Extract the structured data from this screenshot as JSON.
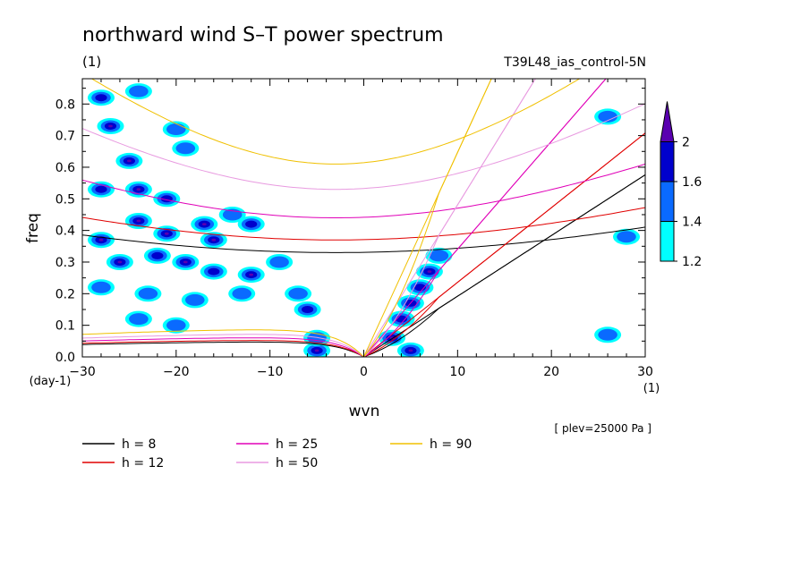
{
  "chart_data": {
    "type": "heatmap",
    "title": "northward wind S–T power spectrum",
    "subtitle_left": "(1)",
    "subtitle_right": "T39L48_ias_control-5N",
    "xlabel": "wvn",
    "ylabel": "freq",
    "x_unit": "(1)",
    "y_unit": "(day-1)",
    "xlim": [
      -30,
      30
    ],
    "ylim": [
      0,
      0.88
    ],
    "xticks": [
      -30,
      -20,
      -10,
      0,
      10,
      20,
      30
    ],
    "xtick_labels": [
      "−30",
      "−20",
      "−10",
      "0",
      "10",
      "20",
      "30"
    ],
    "yticks": [
      0.0,
      0.1,
      0.2,
      0.3,
      0.4,
      0.5,
      0.6,
      0.7,
      0.8
    ],
    "ytick_labels": [
      "0.0",
      "0.1",
      "0.2",
      "0.3",
      "0.4",
      "0.5",
      "0.6",
      "0.7",
      "0.8"
    ],
    "level_note": "[ plev=25000 Pa ]",
    "colorbar": {
      "levels": [
        1.2,
        1.4,
        1.6,
        2
      ],
      "labels": [
        "1.2",
        "1.4",
        "1.6",
        "2"
      ],
      "colors": [
        "#00ffff",
        "#0a6aff",
        "#0000cc",
        "#5a00b0"
      ]
    },
    "series": [
      {
        "name": "h = 8",
        "h": 8,
        "color": "#000000"
      },
      {
        "name": "h = 12",
        "h": 12,
        "color": "#e00000"
      },
      {
        "name": "h = 25",
        "h": 25,
        "color": "#e000b8"
      },
      {
        "name": "h = 50",
        "h": 50,
        "color": "#e89ae0"
      },
      {
        "name": "h = 90",
        "h": 90,
        "color": "#f0c000"
      }
    ],
    "curves": {
      "equatorial_rossby": {
        "asymptote": [
          0.056,
          0.062,
          0.072,
          0.085,
          0.102
        ]
      },
      "inertia_gravity": {
        "minimum": [
          0.33,
          0.37,
          0.44,
          0.53,
          0.61
        ],
        "slope": [
          0.0074,
          0.0089,
          0.0128,
          0.0182,
          0.0244
        ]
      },
      "kelvin": {
        "slope": [
          0.0192,
          0.0236,
          0.0341,
          0.0481,
          0.0647
        ]
      },
      "mrg": {
        "slope": [
          0.0192,
          0.0236,
          0.0341,
          0.0481,
          0.0647
        ]
      }
    },
    "blobs": [
      {
        "k": -28,
        "f": 0.82,
        "l": 2
      },
      {
        "k": -24,
        "f": 0.84,
        "l": 1
      },
      {
        "k": -27,
        "f": 0.73,
        "l": 3
      },
      {
        "k": -20,
        "f": 0.72,
        "l": 1
      },
      {
        "k": -25,
        "f": 0.62,
        "l": 3
      },
      {
        "k": -19,
        "f": 0.66,
        "l": 1
      },
      {
        "k": -28,
        "f": 0.53,
        "l": 2
      },
      {
        "k": -24,
        "f": 0.53,
        "l": 3
      },
      {
        "k": -21,
        "f": 0.5,
        "l": 2
      },
      {
        "k": -28,
        "f": 0.37,
        "l": 3
      },
      {
        "k": -24,
        "f": 0.43,
        "l": 3
      },
      {
        "k": -21,
        "f": 0.39,
        "l": 3
      },
      {
        "k": -17,
        "f": 0.42,
        "l": 3
      },
      {
        "k": -16,
        "f": 0.37,
        "l": 3
      },
      {
        "k": -14,
        "f": 0.45,
        "l": 1
      },
      {
        "k": -12,
        "f": 0.42,
        "l": 2
      },
      {
        "k": -26,
        "f": 0.3,
        "l": 3
      },
      {
        "k": -22,
        "f": 0.32,
        "l": 2
      },
      {
        "k": -19,
        "f": 0.3,
        "l": 3
      },
      {
        "k": -16,
        "f": 0.27,
        "l": 2
      },
      {
        "k": -12,
        "f": 0.26,
        "l": 3
      },
      {
        "k": -28,
        "f": 0.22,
        "l": 1
      },
      {
        "k": -23,
        "f": 0.2,
        "l": 1
      },
      {
        "k": -18,
        "f": 0.18,
        "l": 1
      },
      {
        "k": -13,
        "f": 0.2,
        "l": 1
      },
      {
        "k": -9,
        "f": 0.3,
        "l": 1
      },
      {
        "k": -7,
        "f": 0.2,
        "l": 1
      },
      {
        "k": -24,
        "f": 0.12,
        "l": 1
      },
      {
        "k": -20,
        "f": 0.1,
        "l": 1
      },
      {
        "k": -6,
        "f": 0.15,
        "l": 2
      },
      {
        "k": -5,
        "f": 0.02,
        "l": 3
      },
      {
        "k": -5,
        "f": 0.06,
        "l": 1
      },
      {
        "k": 3,
        "f": 0.06,
        "l": 3
      },
      {
        "k": 4,
        "f": 0.12,
        "l": 2
      },
      {
        "k": 5,
        "f": 0.17,
        "l": 2
      },
      {
        "k": 6,
        "f": 0.22,
        "l": 2
      },
      {
        "k": 7,
        "f": 0.27,
        "l": 3
      },
      {
        "k": 8,
        "f": 0.32,
        "l": 1
      },
      {
        "k": 5,
        "f": 0.02,
        "l": 3
      },
      {
        "k": 26,
        "f": 0.07,
        "l": 1
      },
      {
        "k": 26,
        "f": 0.76,
        "l": 1
      },
      {
        "k": 28,
        "f": 0.38,
        "l": 1
      }
    ]
  }
}
